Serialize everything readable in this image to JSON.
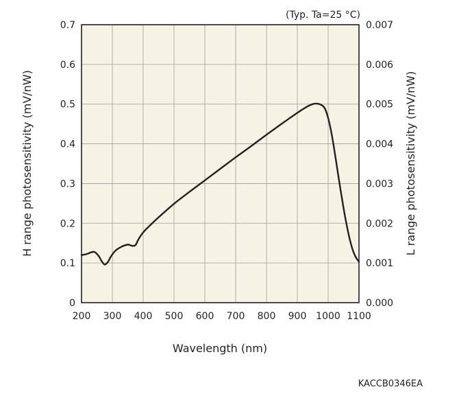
{
  "chart_data": {
    "type": "line",
    "condition_note": "(Typ. Ta=25 °C)",
    "xlabel": "Wavelength (nm)",
    "ylabel": "H range photosensitivity (mV/nW)",
    "ylabel_right": "L range photosensitivity (mV/nW)",
    "xlim": [
      200,
      1100
    ],
    "ylim": [
      0,
      0.7
    ],
    "ylim_right": [
      0,
      0.007
    ],
    "x_ticks": [
      "200",
      "300",
      "400",
      "500",
      "600",
      "700",
      "800",
      "900",
      "1000",
      "1100"
    ],
    "y_ticks": [
      "0",
      "0.1",
      "0.2",
      "0.3",
      "0.4",
      "0.5",
      "0.6",
      "0.7"
    ],
    "y_ticks_right": [
      "0.000",
      "0.001",
      "0.002",
      "0.003",
      "0.004",
      "0.005",
      "0.006",
      "0.007"
    ],
    "grid": true,
    "plot_background": "#f6f3e4",
    "line_color": "#231f20",
    "series": [
      {
        "x": [
          200,
          215,
          240,
          255,
          265,
          275,
          285,
          295,
          310,
          330,
          350,
          365,
          375,
          385,
          400,
          420,
          450,
          500,
          550,
          600,
          650,
          700,
          750,
          800,
          850,
          900,
          930,
          950,
          965,
          980,
          990,
          1000,
          1010,
          1020,
          1030,
          1040,
          1050,
          1060,
          1070,
          1080,
          1090,
          1100
        ],
        "y": [
          0.12,
          0.122,
          0.128,
          0.118,
          0.105,
          0.096,
          0.102,
          0.116,
          0.131,
          0.141,
          0.146,
          0.143,
          0.145,
          0.16,
          0.177,
          0.193,
          0.215,
          0.249,
          0.279,
          0.308,
          0.337,
          0.366,
          0.394,
          0.423,
          0.451,
          0.478,
          0.493,
          0.5,
          0.501,
          0.497,
          0.488,
          0.465,
          0.43,
          0.385,
          0.335,
          0.285,
          0.238,
          0.196,
          0.16,
          0.132,
          0.114,
          0.103
        ]
      }
    ]
  },
  "footer": {
    "code": "KACCB0346EA"
  }
}
